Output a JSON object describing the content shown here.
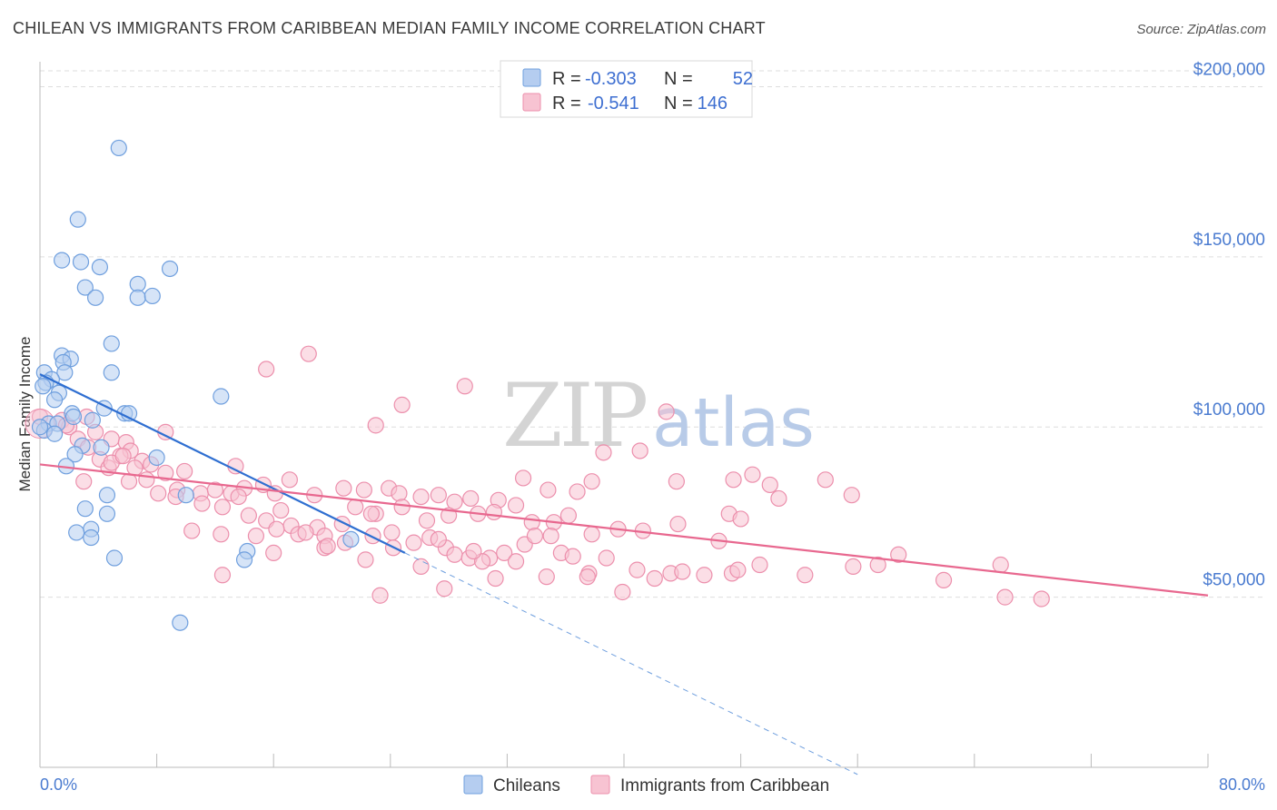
{
  "title": "CHILEAN VS IMMIGRANTS FROM CARIBBEAN MEDIAN FAMILY INCOME CORRELATION CHART",
  "source": "Source: ZipAtlas.com",
  "watermark": {
    "part1": "ZIP",
    "part2": "atlas"
  },
  "colors": {
    "blue_fill": "#b5cdf0",
    "blue_stroke": "#6f9fde",
    "blue_line": "#2f6fd1",
    "pink_fill": "#f7c3d2",
    "pink_stroke": "#ec8fac",
    "pink_line": "#e8688f",
    "grid": "#dddddd",
    "tick_text": "#4a7bd0"
  },
  "legend": {
    "r_label": "R =",
    "n_label": "N =",
    "rows": [
      {
        "series": "Chileans",
        "r": "-0.303",
        "n": "52"
      },
      {
        "series": "Immigrants from Caribbean",
        "r": "-0.541",
        "n": "146"
      }
    ]
  },
  "chart_data": {
    "type": "scatter",
    "title": "CHILEAN VS IMMIGRANTS FROM CARIBBEAN MEDIAN FAMILY INCOME CORRELATION CHART",
    "xlabel": "",
    "ylabel": "Median Family Income",
    "xlim": [
      0,
      80
    ],
    "ylim": [
      0,
      210000
    ],
    "x_tick_labels": [
      "0.0%",
      "80.0%"
    ],
    "y_ticks": [
      {
        "value": 50000,
        "label": "$50,000"
      },
      {
        "value": 100000,
        "label": "$100,000"
      },
      {
        "value": 150000,
        "label": "$150,000"
      },
      {
        "value": 200000,
        "label": "$200,000"
      }
    ],
    "grid": true,
    "legend_position": "top-center",
    "series": [
      {
        "name": "Chileans",
        "color": "#6f9fde",
        "r": -0.303,
        "n": 52,
        "trend": {
          "x0": 0,
          "y0": 115500,
          "x1": 25,
          "y1": 63000,
          "dashed_to_x": 56
        },
        "points": [
          [
            5.4,
            182000
          ],
          [
            2.6,
            161000
          ],
          [
            1.5,
            149000
          ],
          [
            2.8,
            148500
          ],
          [
            4.1,
            147000
          ],
          [
            8.9,
            146500
          ],
          [
            3.1,
            141000
          ],
          [
            6.7,
            142000
          ],
          [
            3.8,
            138000
          ],
          [
            6.7,
            138000
          ],
          [
            7.7,
            138500
          ],
          [
            4.9,
            124500
          ],
          [
            1.5,
            121000
          ],
          [
            2.1,
            120000
          ],
          [
            1.6,
            119000
          ],
          [
            0.3,
            116000
          ],
          [
            4.9,
            116000
          ],
          [
            1.7,
            116000
          ],
          [
            0.8,
            114000
          ],
          [
            0.4,
            113000
          ],
          [
            0.2,
            112000
          ],
          [
            1.3,
            110000
          ],
          [
            12.4,
            109000
          ],
          [
            1.0,
            108000
          ],
          [
            4.4,
            105500
          ],
          [
            5.8,
            104000
          ],
          [
            6.1,
            104000
          ],
          [
            2.2,
            104000
          ],
          [
            2.3,
            103000
          ],
          [
            3.6,
            102000
          ],
          [
            0.6,
            101000
          ],
          [
            1.2,
            101000
          ],
          [
            0.3,
            99000
          ],
          [
            1.0,
            98000
          ],
          [
            4.2,
            94000
          ],
          [
            2.9,
            94500
          ],
          [
            2.4,
            92000
          ],
          [
            8.0,
            91000
          ],
          [
            1.8,
            88500
          ],
          [
            10.0,
            80000
          ],
          [
            4.6,
            80000
          ],
          [
            3.1,
            76000
          ],
          [
            4.6,
            74500
          ],
          [
            3.5,
            70000
          ],
          [
            2.5,
            69000
          ],
          [
            3.5,
            67500
          ],
          [
            21.3,
            67000
          ],
          [
            14.2,
            63500
          ],
          [
            14.0,
            61000
          ],
          [
            5.1,
            61500
          ],
          [
            9.6,
            42500
          ],
          [
            0.0,
            100000
          ]
        ]
      },
      {
        "name": "Immigrants from Caribbean",
        "color": "#ec8fac",
        "r": -0.541,
        "n": 146,
        "trend": {
          "x0": 0,
          "y0": 89000,
          "x1": 80,
          "y1": 50500
        },
        "points": [
          [
            18.4,
            121500
          ],
          [
            15.5,
            117000
          ],
          [
            29.1,
            112000
          ],
          [
            24.8,
            106500
          ],
          [
            42.9,
            104500
          ],
          [
            23.0,
            100500
          ],
          [
            8.6,
            98500
          ],
          [
            1.5,
            102000
          ],
          [
            2.0,
            100000
          ],
          [
            3.2,
            103000
          ],
          [
            1.8,
            100500
          ],
          [
            3.8,
            98500
          ],
          [
            4.9,
            96500
          ],
          [
            5.9,
            95500
          ],
          [
            2.6,
            96500
          ],
          [
            3.3,
            94000
          ],
          [
            6.2,
            93000
          ],
          [
            4.1,
            90500
          ],
          [
            5.5,
            91500
          ],
          [
            7.0,
            90000
          ],
          [
            7.6,
            89000
          ],
          [
            4.7,
            88000
          ],
          [
            8.6,
            86500
          ],
          [
            9.9,
            87000
          ],
          [
            13.4,
            88500
          ],
          [
            3.0,
            84000
          ],
          [
            6.1,
            84000
          ],
          [
            8.1,
            80500
          ],
          [
            9.4,
            81500
          ],
          [
            11.0,
            80500
          ],
          [
            12.0,
            81500
          ],
          [
            13.1,
            80500
          ],
          [
            14.0,
            82000
          ],
          [
            15.3,
            83000
          ],
          [
            16.1,
            80500
          ],
          [
            17.1,
            84500
          ],
          [
            18.8,
            80000
          ],
          [
            20.8,
            82000
          ],
          [
            22.2,
            81500
          ],
          [
            23.9,
            82000
          ],
          [
            24.6,
            80500
          ],
          [
            26.1,
            79500
          ],
          [
            27.3,
            80000
          ],
          [
            28.4,
            78000
          ],
          [
            29.5,
            79000
          ],
          [
            31.4,
            78500
          ],
          [
            33.1,
            85000
          ],
          [
            34.8,
            81500
          ],
          [
            36.8,
            81000
          ],
          [
            37.8,
            84000
          ],
          [
            41.1,
            93000
          ],
          [
            38.6,
            92500
          ],
          [
            43.6,
            84000
          ],
          [
            47.5,
            84500
          ],
          [
            48.8,
            86000
          ],
          [
            50.0,
            83000
          ],
          [
            50.6,
            79000
          ],
          [
            53.8,
            84500
          ],
          [
            55.6,
            80000
          ],
          [
            11.1,
            77500
          ],
          [
            12.5,
            76500
          ],
          [
            14.3,
            74000
          ],
          [
            15.5,
            72500
          ],
          [
            16.5,
            75500
          ],
          [
            17.2,
            71000
          ],
          [
            19.0,
            70500
          ],
          [
            20.7,
            71500
          ],
          [
            21.6,
            76500
          ],
          [
            23.0,
            74500
          ],
          [
            24.8,
            76500
          ],
          [
            26.5,
            72500
          ],
          [
            28.0,
            74000
          ],
          [
            30.0,
            74500
          ],
          [
            31.1,
            75000
          ],
          [
            32.6,
            77000
          ],
          [
            33.7,
            72000
          ],
          [
            35.2,
            72000
          ],
          [
            36.2,
            74000
          ],
          [
            37.8,
            68500
          ],
          [
            39.6,
            70000
          ],
          [
            41.3,
            69500
          ],
          [
            43.7,
            71500
          ],
          [
            46.5,
            66500
          ],
          [
            47.2,
            74500
          ],
          [
            48.0,
            73000
          ],
          [
            10.4,
            69500
          ],
          [
            12.4,
            68500
          ],
          [
            14.8,
            68000
          ],
          [
            16.2,
            70000
          ],
          [
            17.7,
            68500
          ],
          [
            18.2,
            69000
          ],
          [
            19.5,
            68000
          ],
          [
            20.9,
            66000
          ],
          [
            22.8,
            68000
          ],
          [
            24.2,
            64500
          ],
          [
            25.6,
            66000
          ],
          [
            26.7,
            67500
          ],
          [
            27.8,
            64500
          ],
          [
            28.4,
            62500
          ],
          [
            29.4,
            61500
          ],
          [
            30.8,
            61500
          ],
          [
            31.8,
            63000
          ],
          [
            33.2,
            65500
          ],
          [
            33.9,
            68000
          ],
          [
            35.7,
            63000
          ],
          [
            36.5,
            62000
          ],
          [
            37.6,
            57000
          ],
          [
            38.8,
            61500
          ],
          [
            40.9,
            58000
          ],
          [
            43.2,
            57000
          ],
          [
            44.0,
            57500
          ],
          [
            45.5,
            56500
          ],
          [
            47.4,
            57000
          ],
          [
            47.8,
            58000
          ],
          [
            49.3,
            59500
          ],
          [
            52.4,
            56500
          ],
          [
            55.7,
            59000
          ],
          [
            57.4,
            59500
          ],
          [
            58.8,
            62500
          ],
          [
            61.9,
            55000
          ],
          [
            65.8,
            59500
          ],
          [
            66.1,
            50000
          ],
          [
            68.6,
            49500
          ],
          [
            35.0,
            68000
          ],
          [
            12.5,
            56500
          ],
          [
            19.5,
            64500
          ],
          [
            22.3,
            61000
          ],
          [
            23.3,
            50500
          ],
          [
            26.1,
            59000
          ],
          [
            27.7,
            52500
          ],
          [
            30.3,
            60500
          ],
          [
            31.2,
            55500
          ],
          [
            34.7,
            56000
          ],
          [
            37.5,
            56000
          ],
          [
            39.9,
            51500
          ],
          [
            42.1,
            55500
          ],
          [
            24.1,
            69000
          ],
          [
            27.3,
            67000
          ],
          [
            29.7,
            63500
          ],
          [
            32.6,
            60500
          ],
          [
            19.7,
            65000
          ],
          [
            16.0,
            63000
          ],
          [
            22.7,
            74500
          ],
          [
            13.6,
            79500
          ],
          [
            9.3,
            79500
          ],
          [
            7.3,
            84500
          ],
          [
            6.5,
            88000
          ],
          [
            4.9,
            89500
          ],
          [
            5.7,
            91500
          ],
          [
            0.0,
            103000
          ]
        ]
      }
    ]
  }
}
